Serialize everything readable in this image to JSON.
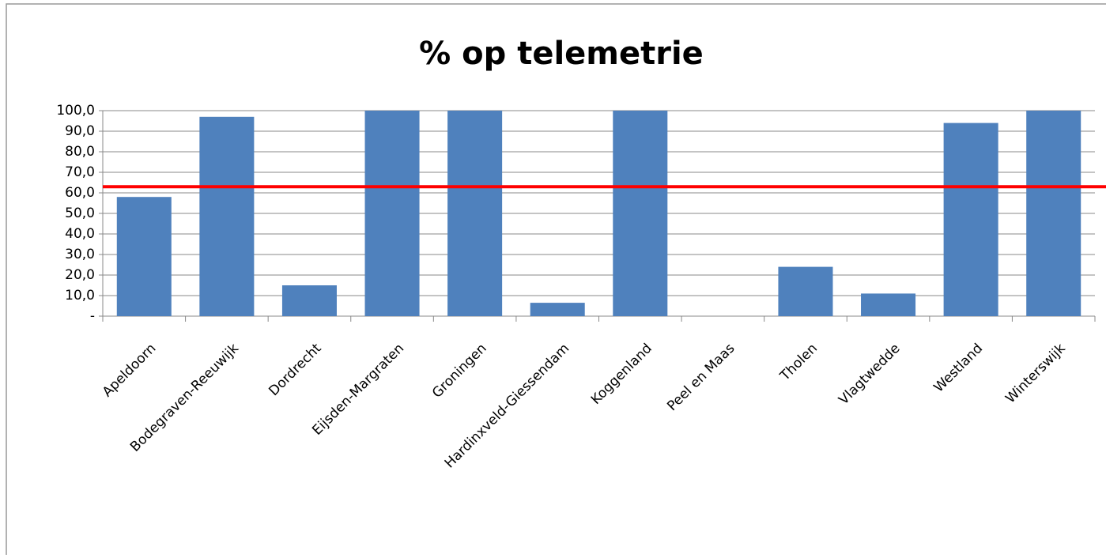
{
  "chart_data": {
    "type": "bar",
    "title": "% op telemetrie",
    "categories": [
      "Apeldoorn",
      "Bodegraven-Reeuwijk",
      "Dordrecht",
      "Eijsden-Margraten",
      "Groningen",
      "Hardinxveld-Giessendam",
      "Koggenland",
      "Peel en Maas",
      "Tholen",
      "Vlagtwedde",
      "Westland",
      "Winterswijk"
    ],
    "values": [
      58,
      97,
      15,
      100,
      100,
      6.5,
      100,
      0,
      24,
      11,
      94,
      100
    ],
    "color": "#4f81bd",
    "reference_line": {
      "value": 63,
      "color": "#ff0000"
    },
    "ylim": [
      0,
      100
    ],
    "yticks": [
      {
        "value": 0,
        "label": "-"
      },
      {
        "value": 10,
        "label": "10,0"
      },
      {
        "value": 20,
        "label": "20,0"
      },
      {
        "value": 30,
        "label": "30,0"
      },
      {
        "value": 40,
        "label": "40,0"
      },
      {
        "value": 50,
        "label": "50,0"
      },
      {
        "value": 60,
        "label": "60,0"
      },
      {
        "value": 70,
        "label": "70,0"
      },
      {
        "value": 80,
        "label": "80,0"
      },
      {
        "value": 90,
        "label": "90,0"
      },
      {
        "value": 100,
        "label": "100,0"
      }
    ],
    "grid": true
  }
}
